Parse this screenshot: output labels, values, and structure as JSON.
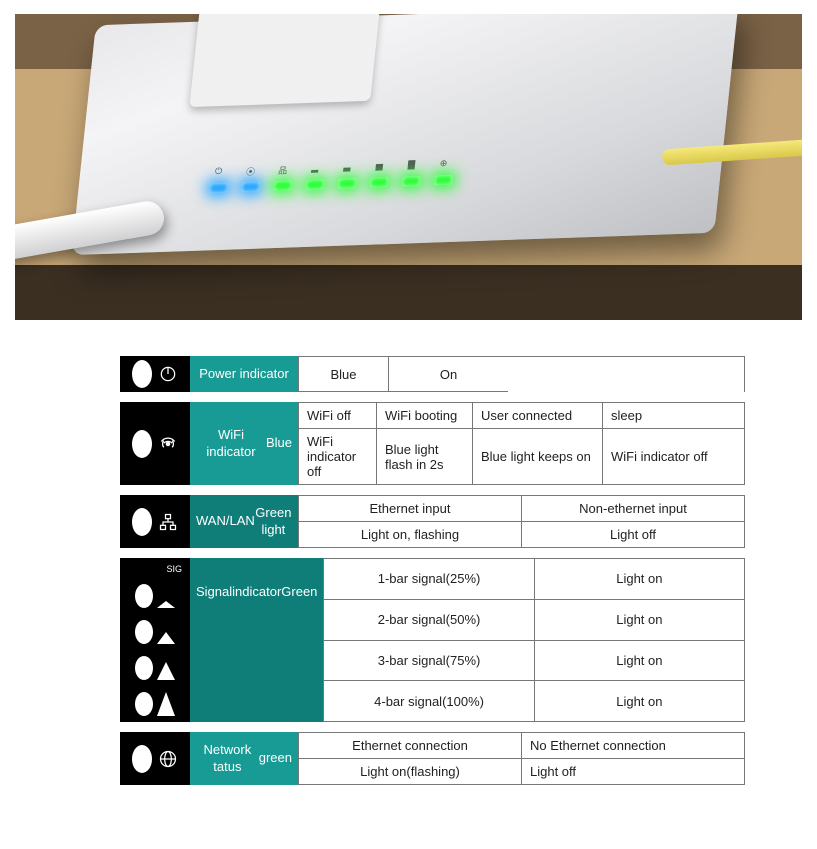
{
  "colors": {
    "teal": "#189b95",
    "teal_dark": "#0f7e79",
    "black": "#000000",
    "border": "#777777",
    "led_blue": "#2aa8ff",
    "led_green": "#2cff3a",
    "page_bg": "#ffffff"
  },
  "photo": {
    "led_pattern": [
      "blue",
      "blue",
      "green",
      "green",
      "green",
      "green",
      "green",
      "green"
    ]
  },
  "tables": [
    {
      "id": "power",
      "icon": "power-icon",
      "label": "Power indicator",
      "label_bg_key": "teal",
      "grid": {
        "cols": 2,
        "rows": 1,
        "col_template": "90px 120px"
      },
      "cells": [
        {
          "t": "Blue",
          "align": "center"
        },
        {
          "t": "On",
          "align": "center"
        }
      ]
    },
    {
      "id": "wifi",
      "icon": "wifi-icon",
      "label_lines": [
        "WiFi indicator",
        "Blue"
      ],
      "label_bg_key": "teal",
      "grid": {
        "cols": 4,
        "rows": 2,
        "col_template": "78px 96px 130px 1fr"
      },
      "cells": [
        {
          "t": "WiFi off"
        },
        {
          "t": "WiFi booting"
        },
        {
          "t": "User connected"
        },
        {
          "t": "sleep"
        },
        {
          "t": "WiFi indicator off"
        },
        {
          "t": "Blue light flash in 2s"
        },
        {
          "t": "Blue light keeps on"
        },
        {
          "t": "WiFi indicator off"
        }
      ]
    },
    {
      "id": "wanlan",
      "icon": "lan-icon",
      "label_lines": [
        "WAN/LAN",
        "Green light"
      ],
      "label_bg_key": "teal_dark",
      "grid": {
        "cols": 2,
        "rows": 2,
        "col_template": "1fr 1fr"
      },
      "cells": [
        {
          "t": "Ethernet input",
          "align": "center"
        },
        {
          "t": "Non-ethernet input",
          "align": "center"
        },
        {
          "t": "Light on, flashing",
          "align": "center"
        },
        {
          "t": "Light off",
          "align": "center"
        }
      ]
    },
    {
      "id": "signal",
      "icon": "signal-icon",
      "sig_label": "SIG",
      "label_lines": [
        "Signal",
        "indicator",
        "Green"
      ],
      "label_bg_key": "teal_dark",
      "grid": {
        "cols": 2,
        "rows": 4,
        "col_template": "1fr 1fr"
      },
      "cells": [
        {
          "t": "1-bar signal(25%)",
          "align": "center"
        },
        {
          "t": "Light on",
          "align": "center"
        },
        {
          "t": "2-bar signal(50%)",
          "align": "center"
        },
        {
          "t": "Light on",
          "align": "center"
        },
        {
          "t": "3-bar signal(75%)",
          "align": "center"
        },
        {
          "t": "Light on",
          "align": "center"
        },
        {
          "t": "4-bar signal(100%)",
          "align": "center"
        },
        {
          "t": "Light on",
          "align": "center"
        }
      ]
    },
    {
      "id": "network",
      "icon": "globe-icon",
      "label_lines": [
        "Network tatus",
        "green"
      ],
      "label_bg_key": "teal",
      "grid": {
        "cols": 2,
        "rows": 2,
        "col_template": "1fr 1fr"
      },
      "cells": [
        {
          "t": "Ethernet connection",
          "align": "center"
        },
        {
          "t": "No Ethernet connection",
          "align": "left"
        },
        {
          "t": "Light on(flashing)",
          "align": "center"
        },
        {
          "t": "Light off",
          "align": "left"
        }
      ]
    }
  ]
}
